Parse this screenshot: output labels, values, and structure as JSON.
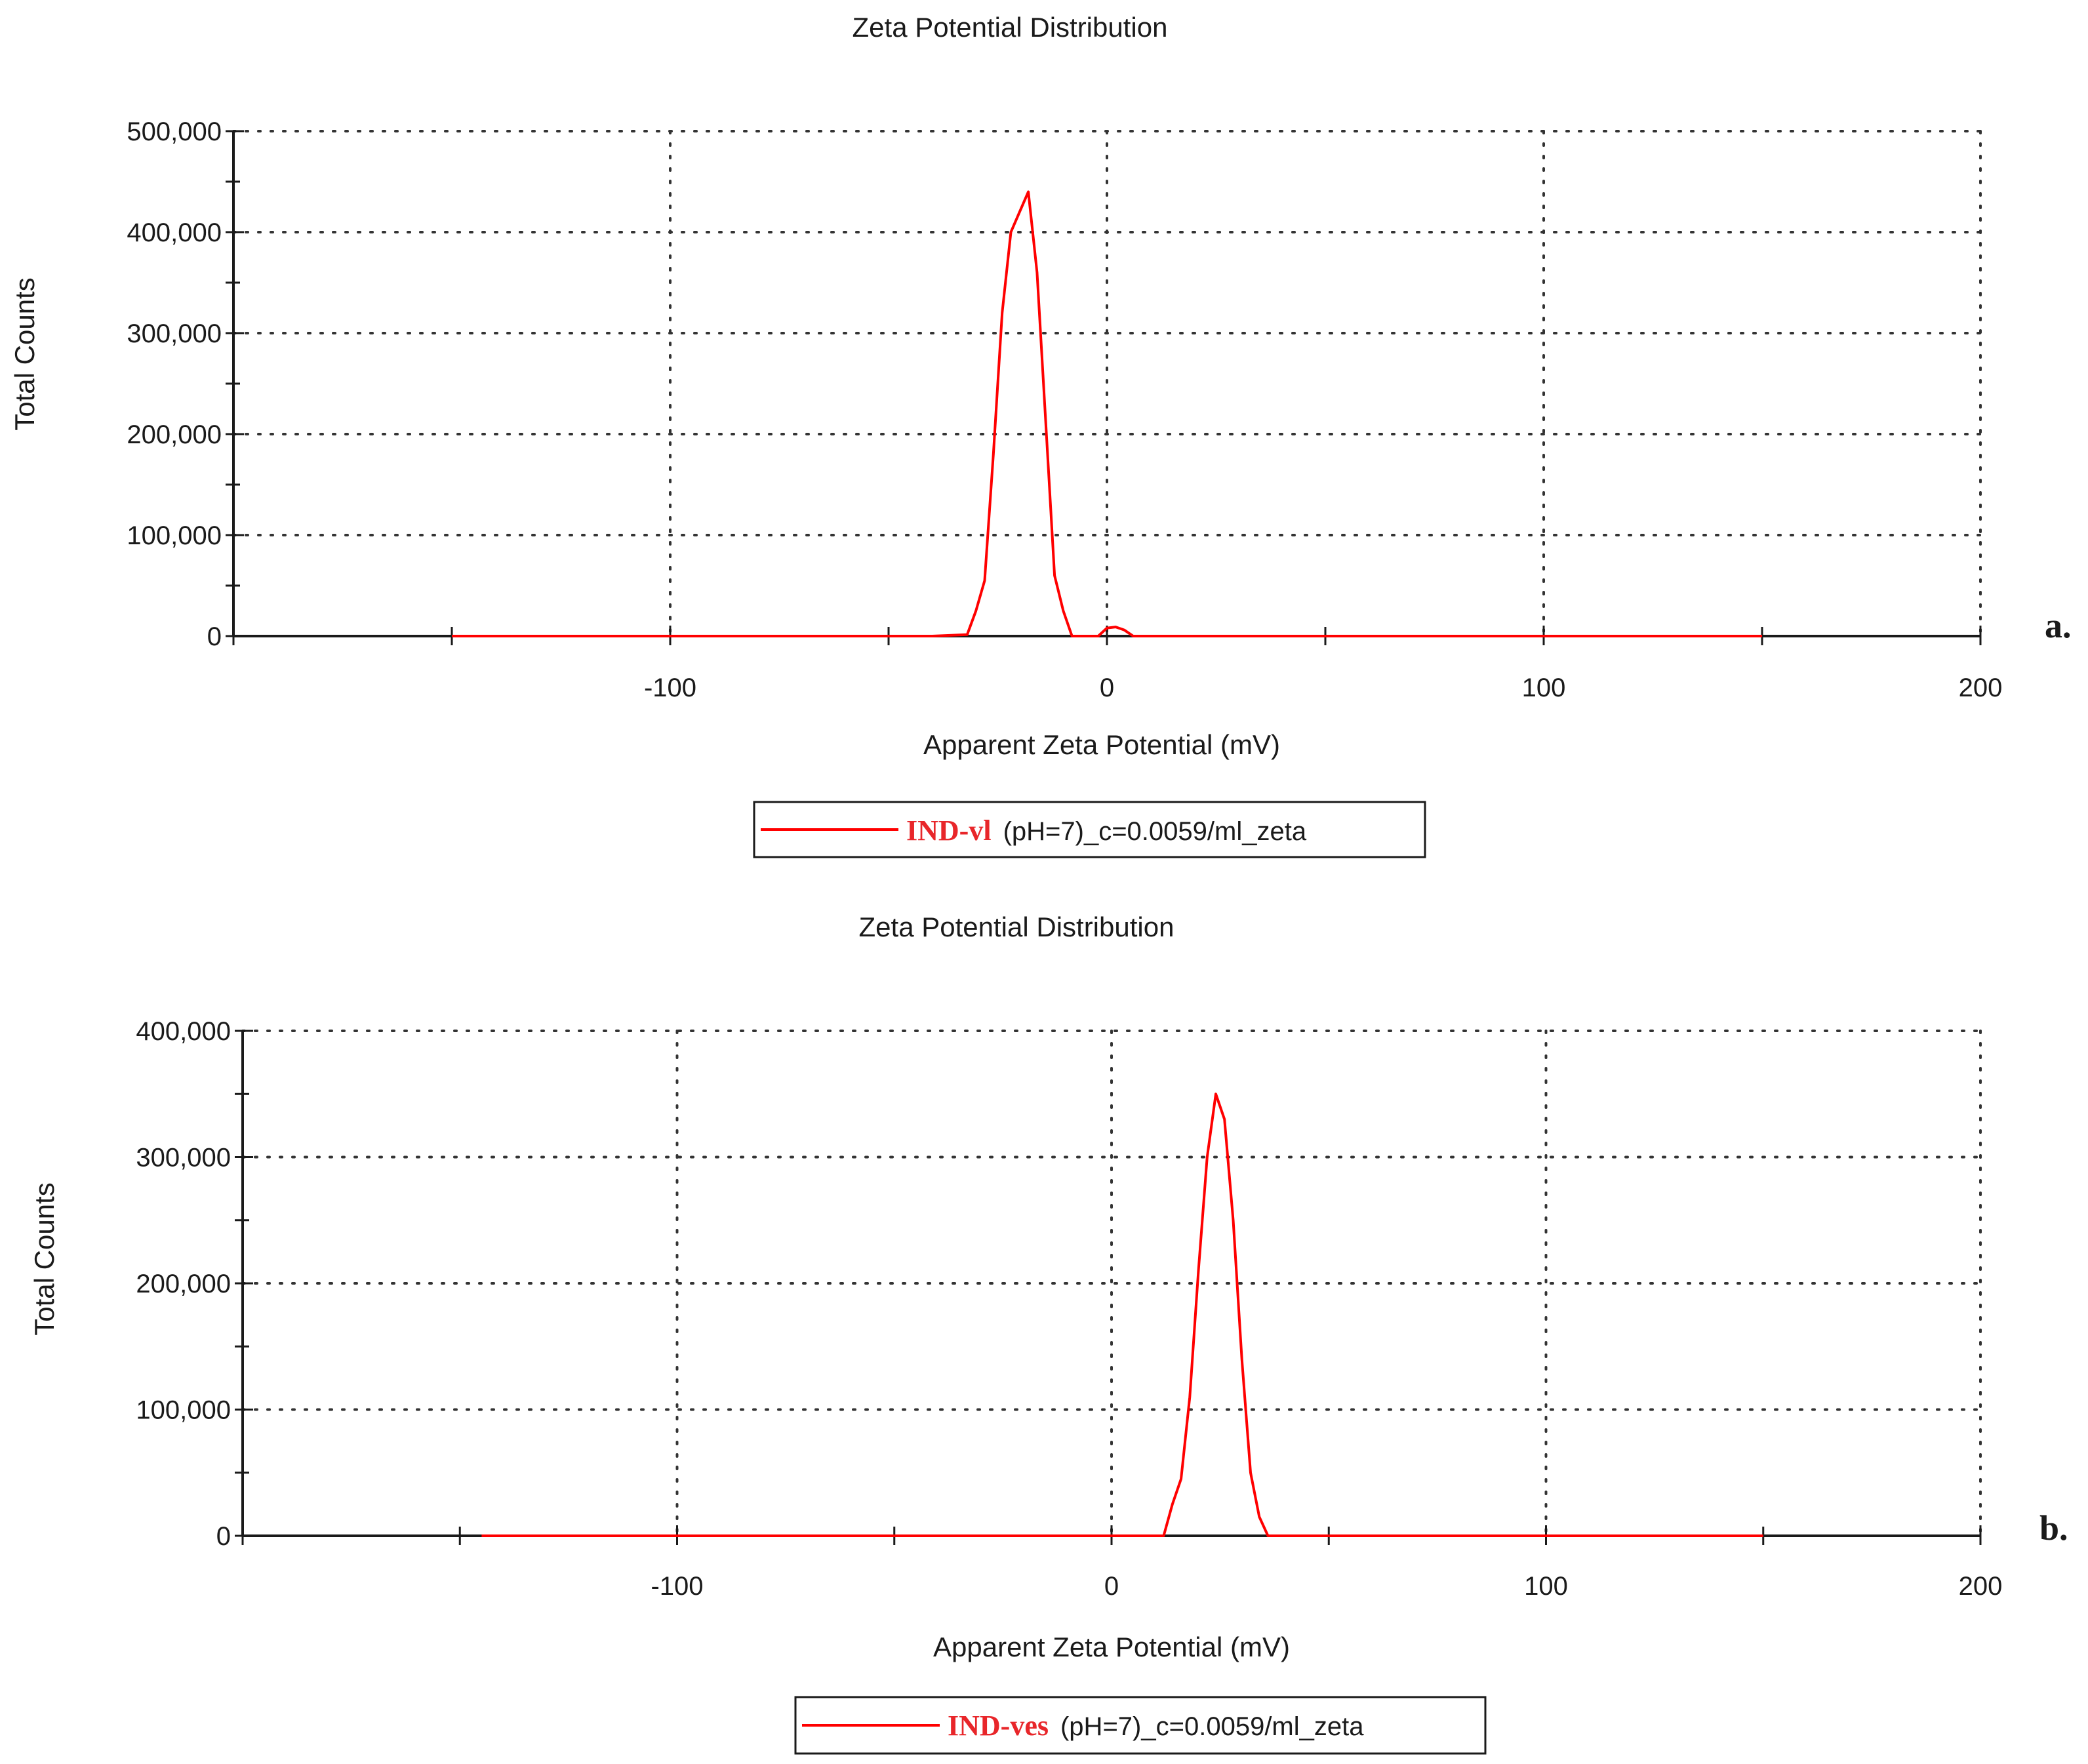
{
  "chart_data": [
    {
      "type": "line",
      "title": "Zeta Potential Distribution",
      "xlabel": "Apparent Zeta Potential (mV)",
      "ylabel": "Total Counts",
      "xlim": [
        -200,
        200
      ],
      "ylim": [
        0,
        500000
      ],
      "xticks": [
        -100,
        0,
        100,
        200
      ],
      "xtick_labels": [
        "-100",
        "0",
        "100",
        "200"
      ],
      "yticks": [
        0,
        100000,
        200000,
        300000,
        400000,
        500000
      ],
      "ytick_labels": [
        "0",
        "100,000",
        "200,000",
        "300,000",
        "400,000",
        "500,000"
      ],
      "grid": true,
      "legend": {
        "name": "IND-vl",
        "text": "(pH=7)_c=0.0059/ml_zeta",
        "placement": "bottom-center"
      },
      "panel_label": "a.",
      "color": "#ff0000",
      "series": [
        {
          "name": "IND-vl",
          "x": [
            -150,
            -40,
            -32,
            -30,
            -28,
            -26,
            -24,
            -22,
            -20,
            -18,
            -16,
            -14,
            -12,
            -10,
            -8,
            -6,
            -2,
            0,
            2,
            4,
            6,
            150
          ],
          "y": [
            0,
            0,
            1500,
            25000,
            55000,
            180000,
            320000,
            400000,
            420000,
            440000,
            360000,
            210000,
            60000,
            25000,
            0,
            0,
            0,
            8000,
            9000,
            6000,
            0,
            0
          ]
        }
      ]
    },
    {
      "type": "line",
      "title": "Zeta Potential Distribution",
      "xlabel": "Apparent Zeta Potential (mV)",
      "ylabel": "Total Counts",
      "xlim": [
        -200,
        200
      ],
      "ylim": [
        0,
        400000
      ],
      "xticks": [
        -100,
        0,
        100,
        200
      ],
      "xtick_labels": [
        "-100",
        "0",
        "100",
        "200"
      ],
      "yticks": [
        0,
        100000,
        200000,
        300000,
        400000
      ],
      "ytick_labels": [
        "0",
        "100,000",
        "200,000",
        "300,000",
        "400,000"
      ],
      "grid": true,
      "legend": {
        "name": "IND-ves",
        "text": "(pH=7)_c=0.0059/ml_zeta",
        "placement": "bottom-center"
      },
      "panel_label": "b.",
      "color": "#ff0000",
      "series": [
        {
          "name": "IND-ves",
          "x": [
            -145,
            12,
            14,
            16,
            18,
            20,
            22,
            24,
            26,
            28,
            30,
            32,
            34,
            36,
            150
          ],
          "y": [
            0,
            0,
            25000,
            45000,
            110000,
            210000,
            300000,
            350000,
            330000,
            250000,
            140000,
            50000,
            15000,
            0,
            0
          ]
        }
      ]
    }
  ]
}
